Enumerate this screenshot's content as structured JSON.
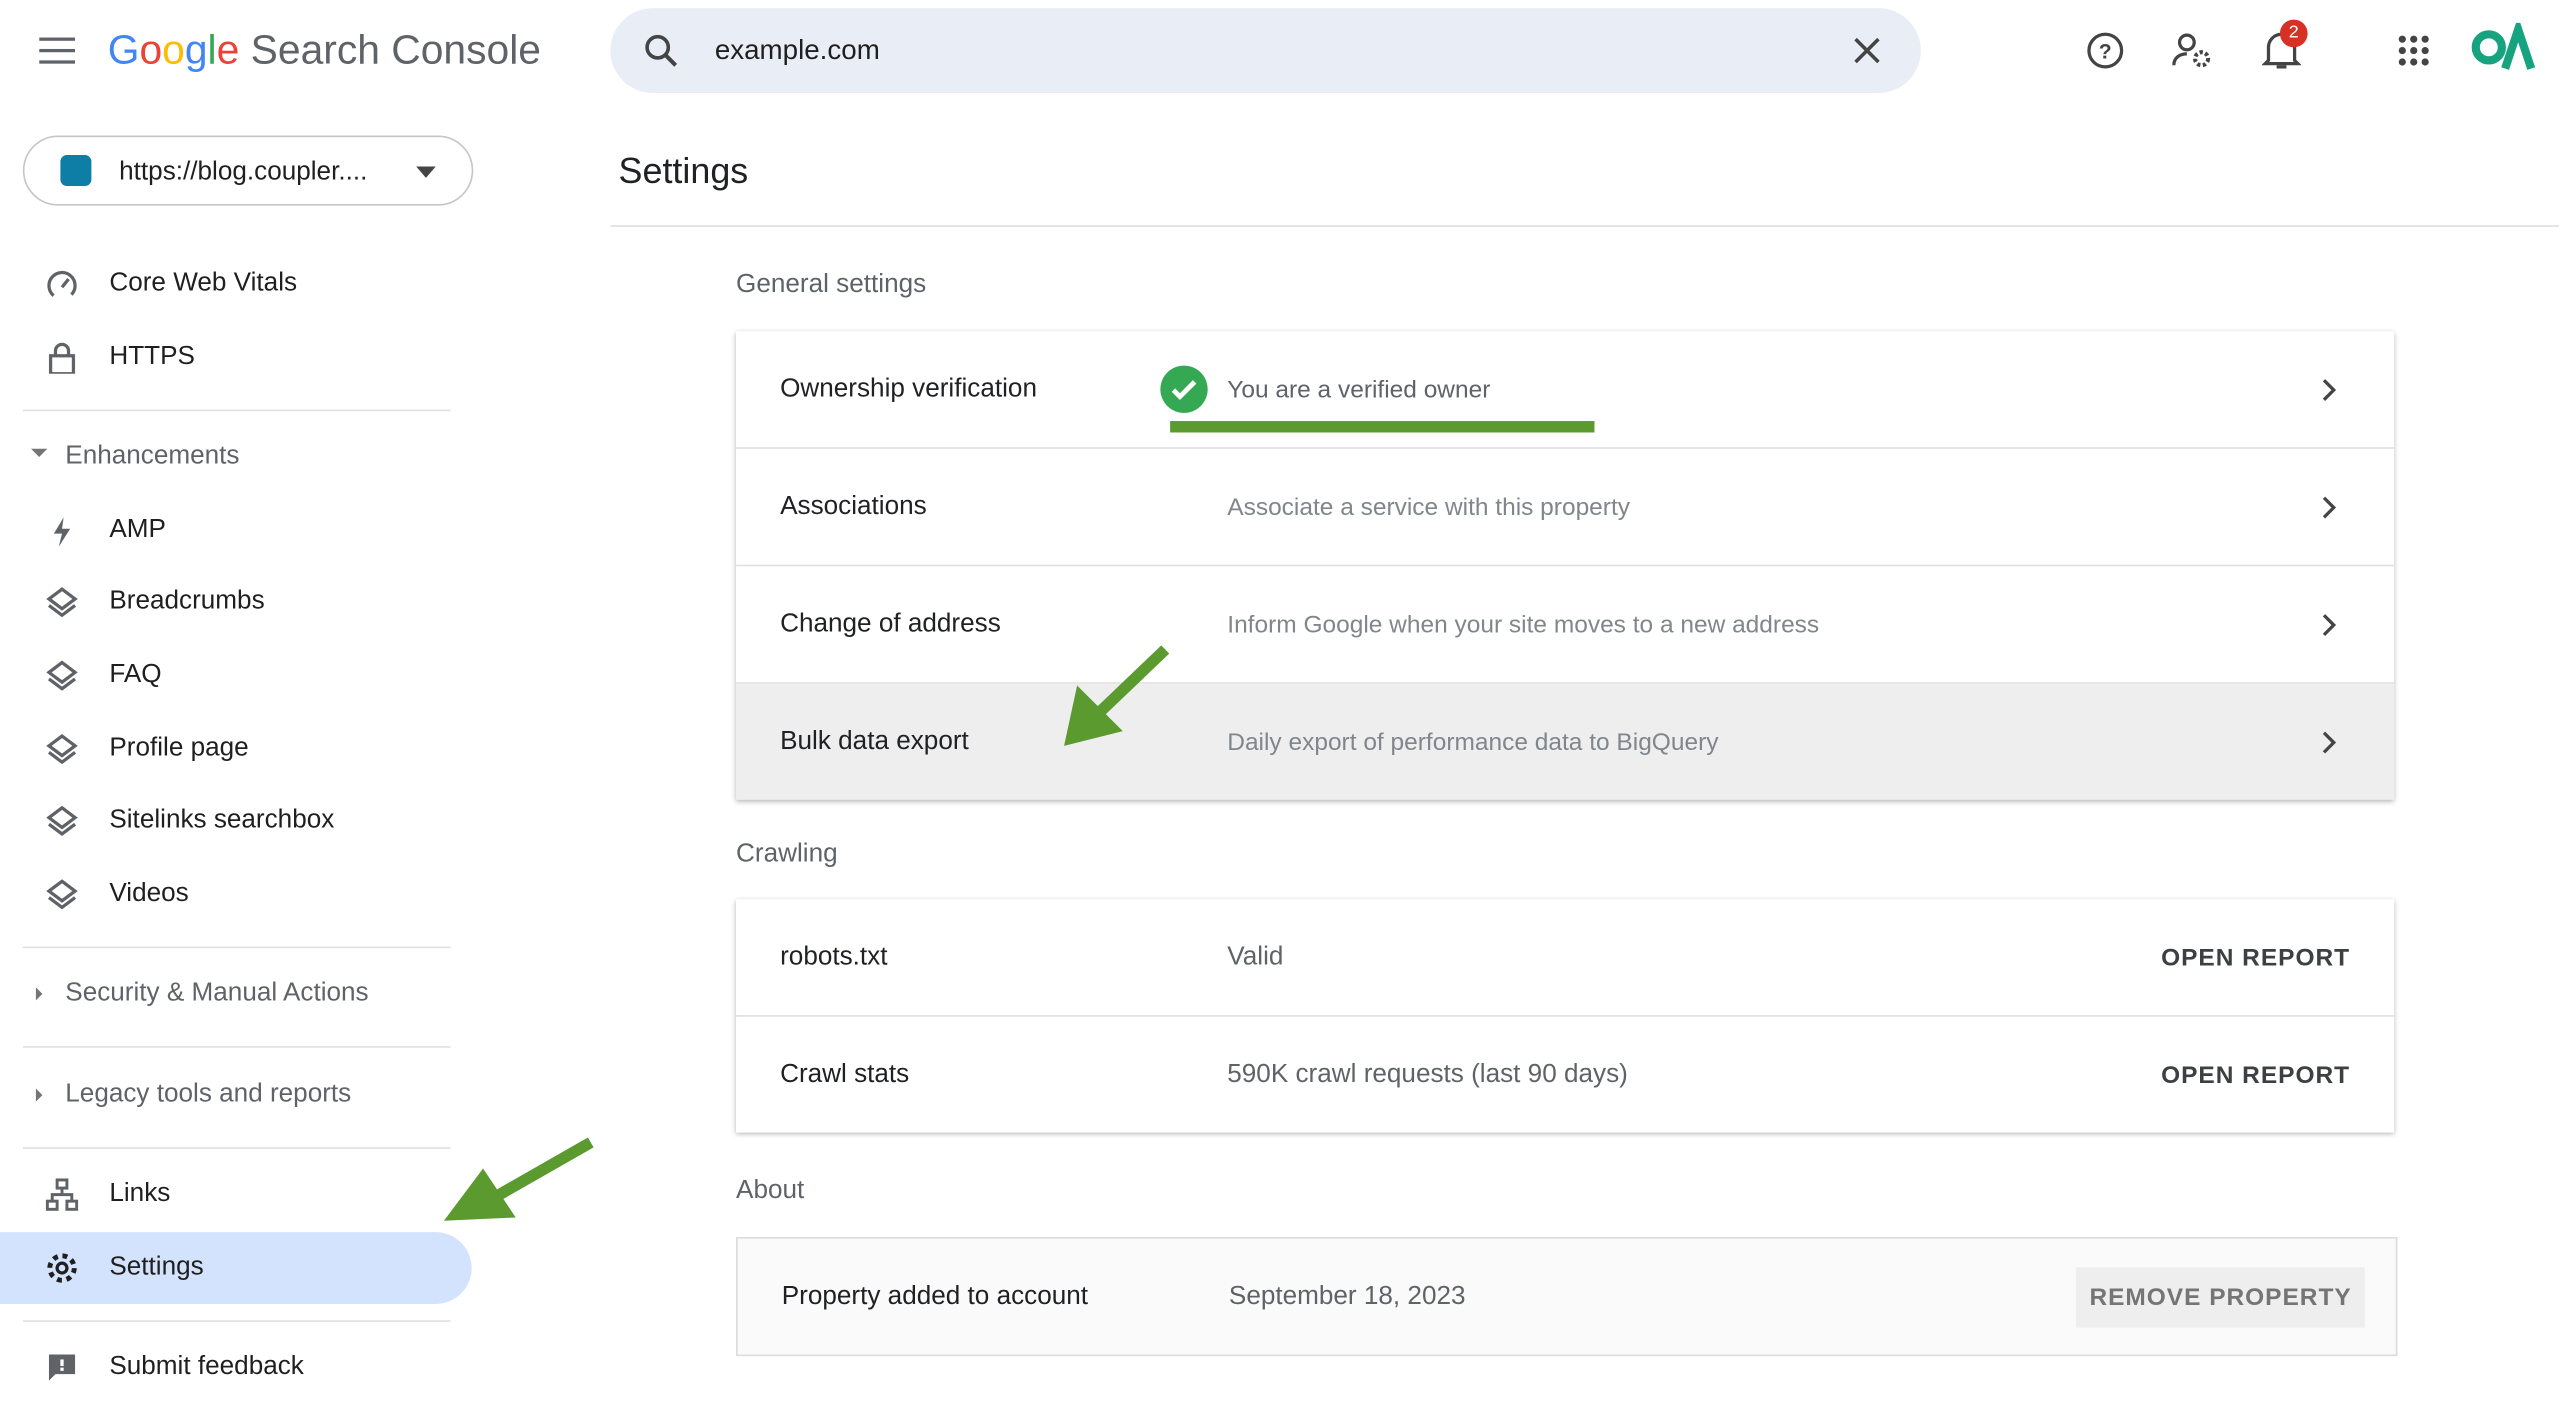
{
  "header": {
    "brand": "Google",
    "product": "Search Console",
    "search_query": "example.com",
    "notification_count": "2"
  },
  "property_selector": "https://blog.coupler....",
  "sidebar": {
    "items": [
      "Core Web Vitals",
      "HTTPS",
      "Enhancements",
      "AMP",
      "Breadcrumbs",
      "FAQ",
      "Profile page",
      "Sitelinks searchbox",
      "Videos",
      "Security & Manual Actions",
      "Legacy tools and reports",
      "Links",
      "Settings",
      "Submit feedback"
    ]
  },
  "page_title": "Settings",
  "sections": [
    {
      "title": "General settings",
      "rows": [
        {
          "label": "Ownership verification",
          "value": "You are a verified owner"
        },
        {
          "label": "Associations",
          "value": "Associate a service with this property"
        },
        {
          "label": "Change of address",
          "value": "Inform Google when your site moves to a new address"
        },
        {
          "label": "Bulk data export",
          "value": "Daily export of performance data to BigQuery"
        }
      ]
    },
    {
      "title": "Crawling",
      "rows": [
        {
          "label": "robots.txt",
          "value": "Valid",
          "action": "OPEN REPORT"
        },
        {
          "label": "Crawl stats",
          "value": "590K crawl requests (last 90 days)",
          "action": "OPEN REPORT"
        }
      ]
    },
    {
      "title": "About",
      "rows": [
        {
          "label": "Property added to account",
          "value": "September 18, 2023",
          "action": "REMOVE PROPERTY"
        }
      ]
    }
  ]
}
